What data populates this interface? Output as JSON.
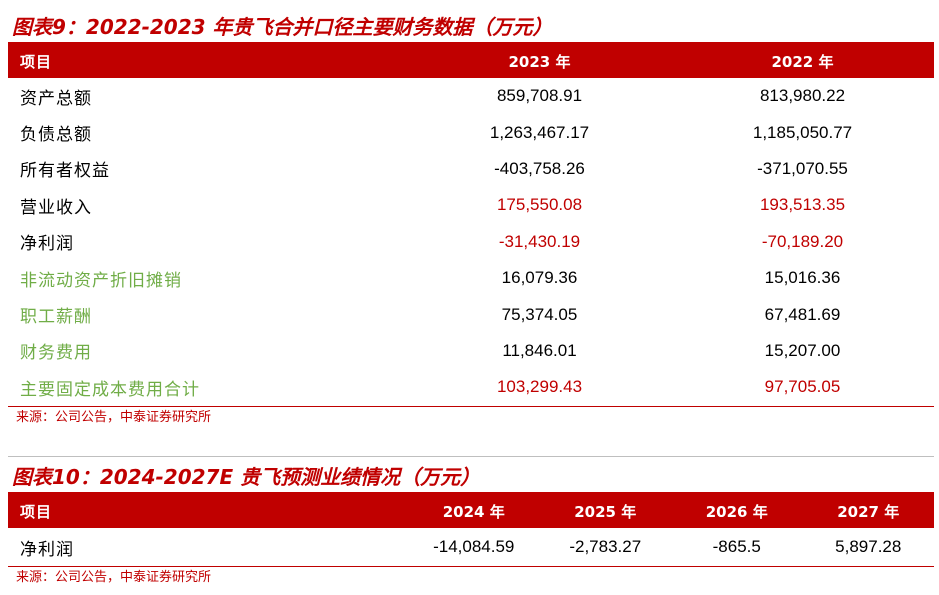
{
  "table1": {
    "title": "图表9：2022-2023 年贵飞合并口径主要财务数据（万元）",
    "headers": [
      "项目",
      "2023 年",
      "2022 年"
    ],
    "rows": [
      {
        "label": "资产总额",
        "v2023": "859,708.91",
        "v2022": "813,980.22",
        "label_style": "black",
        "value_style": "black"
      },
      {
        "label": "负债总额",
        "v2023": "1,263,467.17",
        "v2022": "1,185,050.77",
        "label_style": "black",
        "value_style": "black"
      },
      {
        "label": "所有者权益",
        "v2023": "-403,758.26",
        "v2022": "-371,070.55",
        "label_style": "black",
        "value_style": "black"
      },
      {
        "label": "营业收入",
        "v2023": "175,550.08",
        "v2022": "193,513.35",
        "label_style": "black",
        "value_style": "red"
      },
      {
        "label": "净利润",
        "v2023": "-31,430.19",
        "v2022": "-70,189.20",
        "label_style": "black",
        "value_style": "red"
      },
      {
        "label": "非流动资产折旧摊销",
        "v2023": "16,079.36",
        "v2022": "15,016.36",
        "label_style": "green",
        "value_style": "black"
      },
      {
        "label": "职工薪酬",
        "v2023": "75,374.05",
        "v2022": "67,481.69",
        "label_style": "green",
        "value_style": "black"
      },
      {
        "label": "财务费用",
        "v2023": "11,846.01",
        "v2022": "15,207.00",
        "label_style": "green",
        "value_style": "black"
      },
      {
        "label": "主要固定成本费用合计",
        "v2023": "103,299.43",
        "v2022": "97,705.05",
        "label_style": "green",
        "value_style": "red"
      }
    ],
    "source": "来源：公司公告，中泰证券研究所"
  },
  "table2": {
    "title": "图表10：2024-2027E 贵飞预测业绩情况（万元）",
    "headers": [
      "项目",
      "2024 年",
      "2025 年",
      "2026 年",
      "2027 年"
    ],
    "rows": [
      {
        "label": "净利润",
        "values": [
          "-14,084.59",
          "-2,783.27",
          "-865.5",
          "5,897.28"
        ]
      }
    ],
    "source": "来源：公司公告，中泰证券研究所"
  },
  "colors": {
    "accent": "#c00000",
    "green": "#70ad47"
  }
}
